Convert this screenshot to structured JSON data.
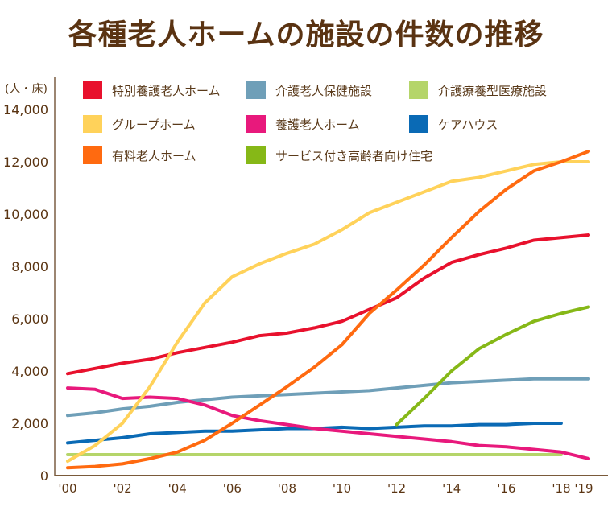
{
  "title": "各種老人ホームの施設の件数の推移",
  "chart_data": {
    "type": "line",
    "title": "各種老人ホームの施設の件数の推移",
    "ylabel": "(人・床)",
    "xlabel": "",
    "ylim": [
      0,
      14000
    ],
    "yticks": [
      0,
      2000,
      4000,
      6000,
      8000,
      10000,
      12000,
      14000
    ],
    "ytick_labels": [
      "0",
      "2,000",
      "4,000",
      "6,000",
      "8,000",
      "10,000",
      "12,000",
      "14,000"
    ],
    "x": [
      2000,
      2001,
      2002,
      2003,
      2004,
      2005,
      2006,
      2007,
      2008,
      2009,
      2010,
      2011,
      2012,
      2013,
      2014,
      2015,
      2016,
      2017,
      2018,
      2019
    ],
    "xticks": [
      2000,
      2002,
      2004,
      2006,
      2008,
      2010,
      2012,
      2014,
      2016,
      2018,
      2019
    ],
    "xtick_labels": [
      "'00",
      "'02",
      "'04",
      "'06",
      "'08",
      "'10",
      "'12",
      "'14",
      "'16",
      "'18",
      "'19"
    ],
    "grid": false,
    "legend_position": "top",
    "series": [
      {
        "name": "特別養護老人ホーム",
        "color": "#e8112d",
        "values": [
          3900,
          4100,
          4300,
          4450,
          4700,
          4900,
          5100,
          5350,
          5450,
          5650,
          5900,
          6350,
          6800,
          7550,
          8150,
          8450,
          8700,
          9000,
          9100,
          9200
        ]
      },
      {
        "name": "介護老人保健施設",
        "color": "#6f9fb8",
        "values": [
          2300,
          2400,
          2550,
          2650,
          2800,
          2900,
          3000,
          3050,
          3100,
          3150,
          3200,
          3250,
          3350,
          3450,
          3550,
          3600,
          3650,
          3700,
          3700,
          3700
        ]
      },
      {
        "name": "介護療養型医療施設",
        "color": "#b5d56a",
        "values": [
          800,
          800,
          800,
          800,
          800,
          800,
          800,
          800,
          800,
          800,
          800,
          800,
          800,
          800,
          800,
          800,
          800,
          800,
          800,
          null
        ]
      },
      {
        "name": "グループホーム",
        "color": "#ffd25a",
        "values": [
          550,
          1150,
          2000,
          3400,
          5100,
          6600,
          7600,
          8100,
          8500,
          8850,
          9400,
          10050,
          10450,
          10850,
          11250,
          11400,
          11650,
          11900,
          12000,
          12000
        ]
      },
      {
        "name": "養護老人ホーム",
        "color": "#e8197c",
        "values": [
          3350,
          3300,
          2950,
          3000,
          2950,
          2700,
          2300,
          2100,
          1950,
          1800,
          1700,
          1600,
          1500,
          1400,
          1300,
          1150,
          1100,
          1000,
          900,
          650
        ]
      },
      {
        "name": "ケアハウス",
        "color": "#0a6ab5",
        "values": [
          1250,
          1350,
          1450,
          1600,
          1650,
          1700,
          1700,
          1750,
          1800,
          1800,
          1850,
          1800,
          1850,
          1900,
          1900,
          1950,
          1950,
          2000,
          2000,
          null
        ]
      },
      {
        "name": "有料老人ホーム",
        "color": "#ff6a10",
        "values": [
          300,
          350,
          450,
          650,
          900,
          1350,
          2000,
          2700,
          3400,
          4150,
          5000,
          6200,
          7100,
          8050,
          9100,
          10100,
          10950,
          11650,
          12000,
          12400
        ]
      },
      {
        "name": "サービス付き高齢者向け住宅",
        "color": "#86b817",
        "values": [
          null,
          null,
          null,
          null,
          null,
          null,
          null,
          null,
          null,
          null,
          null,
          null,
          1950,
          2950,
          4000,
          4850,
          5400,
          5900,
          6200,
          6450
        ]
      }
    ]
  },
  "legend": [
    {
      "label": "特別養護老人ホーム",
      "color": "#e8112d"
    },
    {
      "label": "介護老人保健施設",
      "color": "#6f9fb8"
    },
    {
      "label": "介護療養型医療施設",
      "color": "#b5d56a"
    },
    {
      "label": "グループホーム",
      "color": "#ffd25a"
    },
    {
      "label": "養護老人ホーム",
      "color": "#e8197c"
    },
    {
      "label": "ケアハウス",
      "color": "#0a6ab5"
    },
    {
      "label": "有料老人ホーム",
      "color": "#ff6a10"
    },
    {
      "label": "サービス付き高齢者向け住宅",
      "color": "#86b817"
    }
  ]
}
